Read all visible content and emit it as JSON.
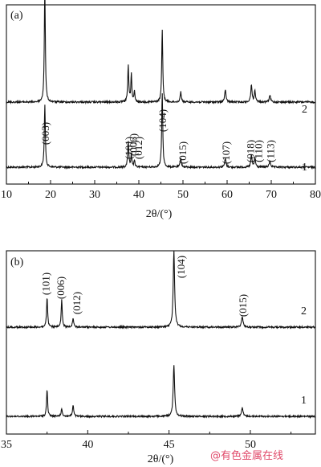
{
  "chart_data": [
    {
      "type": "line",
      "panel_label": "(a)",
      "xlabel": "2θ/(°)",
      "xlim": [
        10,
        80
      ],
      "xticks": [
        10,
        20,
        30,
        40,
        50,
        60,
        70,
        80
      ],
      "ylabel": "",
      "series": [
        {
          "name": "1",
          "peaks": [
            {
              "x": 18.7,
              "h": 0.52,
              "w": 0.22
            },
            {
              "x": 37.6,
              "h": 0.22,
              "w": 0.22
            },
            {
              "x": 38.3,
              "h": 0.1,
              "w": 0.2
            },
            {
              "x": 39.0,
              "h": 0.06,
              "w": 0.2
            },
            {
              "x": 45.3,
              "h": 0.62,
              "w": 0.22
            },
            {
              "x": 49.5,
              "h": 0.08,
              "w": 0.25
            },
            {
              "x": 59.6,
              "h": 0.07,
              "w": 0.3
            },
            {
              "x": 65.5,
              "h": 0.1,
              "w": 0.25
            },
            {
              "x": 66.3,
              "h": 0.08,
              "w": 0.25
            },
            {
              "x": 69.7,
              "h": 0.05,
              "w": 0.3
            }
          ]
        },
        {
          "name": "2",
          "peaks": [
            {
              "x": 18.7,
              "h": 0.88,
              "w": 0.22
            },
            {
              "x": 37.6,
              "h": 0.28,
              "w": 0.22
            },
            {
              "x": 38.3,
              "h": 0.22,
              "w": 0.2
            },
            {
              "x": 39.0,
              "h": 0.08,
              "w": 0.2
            },
            {
              "x": 45.3,
              "h": 0.56,
              "w": 0.22
            },
            {
              "x": 49.5,
              "h": 0.08,
              "w": 0.25
            },
            {
              "x": 59.6,
              "h": 0.09,
              "w": 0.3
            },
            {
              "x": 65.5,
              "h": 0.14,
              "w": 0.25
            },
            {
              "x": 66.3,
              "h": 0.09,
              "w": 0.25
            },
            {
              "x": 69.7,
              "h": 0.05,
              "w": 0.3
            }
          ]
        }
      ],
      "annotations": [
        {
          "text": "(003)",
          "x": 18.7
        },
        {
          "text": "(101)",
          "x": 37.6
        },
        {
          "text": "(006)",
          "x": 38.6
        },
        {
          "text": "(012)",
          "x": 39.8
        },
        {
          "text": "(104)",
          "x": 45.3
        },
        {
          "text": "(015)",
          "x": 49.8
        },
        {
          "text": "(107)",
          "x": 59.6
        },
        {
          "text": "(018)",
          "x": 65.2
        },
        {
          "text": "(110)",
          "x": 67.0
        },
        {
          "text": "(113)",
          "x": 69.7
        }
      ]
    },
    {
      "type": "line",
      "panel_label": "(b)",
      "xlabel": "2θ/(°)",
      "xlim": [
        35,
        54
      ],
      "xticks": [
        35,
        40,
        45,
        50
      ],
      "ylabel": "",
      "series": [
        {
          "name": "1",
          "peaks": [
            {
              "x": 37.5,
              "h": 0.36,
              "w": 0.06
            },
            {
              "x": 38.4,
              "h": 0.09,
              "w": 0.08
            },
            {
              "x": 39.1,
              "h": 0.14,
              "w": 0.07
            },
            {
              "x": 45.3,
              "h": 0.68,
              "w": 0.08
            },
            {
              "x": 49.5,
              "h": 0.11,
              "w": 0.09
            }
          ]
        },
        {
          "name": "2",
          "peaks": [
            {
              "x": 37.5,
              "h": 0.4,
              "w": 0.06
            },
            {
              "x": 38.4,
              "h": 0.36,
              "w": 0.06
            },
            {
              "x": 39.1,
              "h": 0.12,
              "w": 0.07
            },
            {
              "x": 45.3,
              "h": 1.0,
              "w": 0.08
            },
            {
              "x": 49.5,
              "h": 0.14,
              "w": 0.09
            }
          ]
        }
      ],
      "annotations": [
        {
          "text": "(101)",
          "x": 37.4
        },
        {
          "text": "(006)",
          "x": 38.3
        },
        {
          "text": "(012)",
          "x": 39.3
        },
        {
          "text": "(104)",
          "x": 45.7
        },
        {
          "text": "(015)",
          "x": 49.5
        }
      ]
    }
  ],
  "watermark": "@有色金属在线"
}
